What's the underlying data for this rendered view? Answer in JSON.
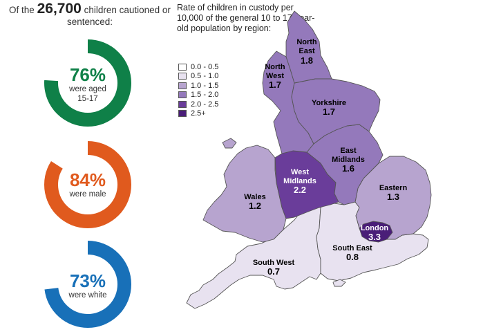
{
  "headline": {
    "prefix": "Of the",
    "number": "26,700",
    "suffix": "children cautioned or sentenced:"
  },
  "stats": [
    {
      "value_text": "76%",
      "label_line1": "were aged",
      "label_line2": "15-17",
      "fraction": 0.76,
      "color": "#0f8048"
    },
    {
      "value_text": "84%",
      "label_line1": "were male",
      "label_line2": "",
      "fraction": 0.84,
      "color": "#e05a1e"
    },
    {
      "value_text": "73%",
      "label_line1": "were white",
      "label_line2": "",
      "fraction": 0.73,
      "color": "#1870b8"
    }
  ],
  "map": {
    "caption": "Rate of children in custody per 10,000 of the general 10 to 17-year-old population by region:",
    "legend": [
      {
        "label": "0.0 - 0.5",
        "color": "#ffffff"
      },
      {
        "label": "0.5 - 1.0",
        "color": "#e8e2f0"
      },
      {
        "label": "1.0 - 1.5",
        "color": "#b7a4cf"
      },
      {
        "label": "1.5 - 2.0",
        "color": "#9479bb"
      },
      {
        "label": "2.0 - 2.5",
        "color": "#6a3d9a"
      },
      {
        "label": "2.5+",
        "color": "#4a1e78"
      }
    ],
    "regions": {
      "north_east": {
        "name_line1": "North",
        "name_line2": "East",
        "rate": "1.8",
        "color": "#9479bb"
      },
      "north_west": {
        "name_line1": "North",
        "name_line2": "West",
        "rate": "1.7",
        "color": "#9479bb"
      },
      "yorkshire": {
        "name_line1": "Yorkshire",
        "name_line2": "",
        "rate": "1.7",
        "color": "#9479bb"
      },
      "east_midlands": {
        "name_line1": "East",
        "name_line2": "Midlands",
        "rate": "1.6",
        "color": "#9479bb"
      },
      "west_midlands": {
        "name_line1": "West",
        "name_line2": "Midlands",
        "rate": "2.2",
        "color": "#6a3d9a"
      },
      "wales": {
        "name_line1": "Wales",
        "name_line2": "",
        "rate": "1.2",
        "color": "#b7a4cf"
      },
      "eastern": {
        "name_line1": "Eastern",
        "name_line2": "",
        "rate": "1.3",
        "color": "#b7a4cf"
      },
      "london": {
        "name_line1": "London",
        "name_line2": "",
        "rate": "3.3",
        "color": "#4a1e78"
      },
      "south_east": {
        "name_line1": "South East",
        "name_line2": "",
        "rate": "0.8",
        "color": "#e8e2f0"
      },
      "south_west": {
        "name_line1": "South West",
        "name_line2": "",
        "rate": "0.7",
        "color": "#e8e2f0"
      }
    }
  }
}
